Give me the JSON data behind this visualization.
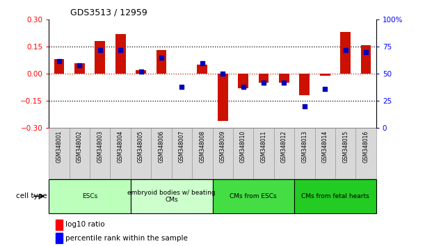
{
  "title": "GDS3513 / 12959",
  "samples": [
    "GSM348001",
    "GSM348002",
    "GSM348003",
    "GSM348004",
    "GSM348005",
    "GSM348006",
    "GSM348007",
    "GSM348008",
    "GSM348009",
    "GSM348010",
    "GSM348011",
    "GSM348012",
    "GSM348013",
    "GSM348014",
    "GSM348015",
    "GSM348016"
  ],
  "log10_ratio": [
    0.08,
    0.06,
    0.18,
    0.22,
    0.02,
    0.13,
    0.0,
    0.05,
    -0.26,
    -0.08,
    -0.05,
    -0.05,
    -0.12,
    -0.01,
    0.23,
    0.16
  ],
  "percentile_rank": [
    62,
    58,
    72,
    72,
    52,
    65,
    38,
    60,
    50,
    38,
    42,
    42,
    20,
    36,
    72,
    70
  ],
  "cell_groups": [
    {
      "label": "ESCs",
      "start": 0,
      "end": 3,
      "color": "#bbffbb"
    },
    {
      "label": "embryoid bodies w/ beating\nCMs",
      "start": 4,
      "end": 7,
      "color": "#ccffcc"
    },
    {
      "label": "CMs from ESCs",
      "start": 8,
      "end": 11,
      "color": "#44dd44"
    },
    {
      "label": "CMs from fetal hearts",
      "start": 12,
      "end": 15,
      "color": "#22cc22"
    }
  ],
  "ylim_left": [
    -0.3,
    0.3
  ],
  "ylim_right": [
    0,
    100
  ],
  "yticks_left": [
    -0.3,
    -0.15,
    0,
    0.15,
    0.3
  ],
  "yticks_right": [
    0,
    25,
    50,
    75,
    100
  ],
  "bar_color": "#cc1100",
  "dot_color": "#0000bb",
  "legend_bar_label": "log10 ratio",
  "legend_dot_label": "percentile rank within the sample",
  "bar_width": 0.5
}
